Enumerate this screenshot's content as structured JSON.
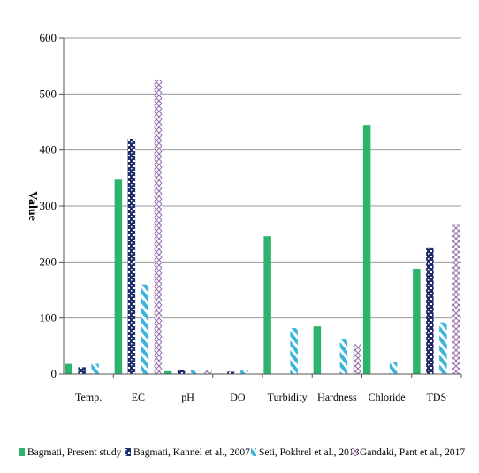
{
  "chart_data": {
    "type": "bar",
    "title": "",
    "xlabel": "",
    "ylabel": "Value",
    "ylim": [
      0,
      600
    ],
    "yticks": [
      0,
      100,
      200,
      300,
      400,
      500,
      600
    ],
    "grid": true,
    "legend_position": "bottom",
    "categories": [
      "Temp.",
      "EC",
      "pH",
      "DO",
      "Turbidity",
      "Hardness",
      "Chloride",
      "TDS"
    ],
    "series": [
      {
        "name": "Bagmati, Present study",
        "color": "#2db36b",
        "pattern": "solid",
        "values": [
          18,
          347,
          5,
          1,
          246,
          85,
          445,
          188
        ]
      },
      {
        "name": "Bagmati, Kannel et al., 2007",
        "color": "#1f2d6b",
        "pattern": "dots",
        "values": [
          12,
          420,
          7,
          4,
          0,
          0,
          0,
          226
        ]
      },
      {
        "name": "Seti, Pokhrel et al., 2018",
        "color": "#3cb4dc",
        "pattern": "diagonal",
        "values": [
          18,
          160,
          7,
          8,
          82,
          63,
          22,
          92
        ]
      },
      {
        "name": "Gandaki, Pant et al., 2017",
        "color": "#9a6fb0",
        "pattern": "cross",
        "values": [
          0,
          526,
          6,
          0,
          0,
          53,
          0,
          268
        ]
      }
    ]
  }
}
